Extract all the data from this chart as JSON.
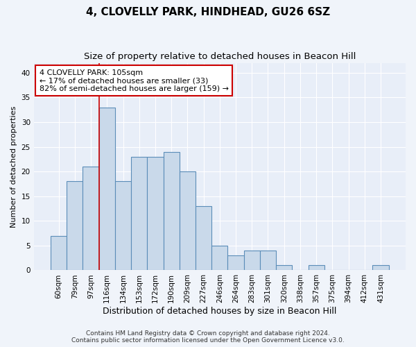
{
  "title": "4, CLOVELLY PARK, HINDHEAD, GU26 6SZ",
  "subtitle": "Size of property relative to detached houses in Beacon Hill",
  "xlabel": "Distribution of detached houses by size in Beacon Hill",
  "ylabel": "Number of detached properties",
  "categories": [
    "60sqm",
    "79sqm",
    "97sqm",
    "116sqm",
    "134sqm",
    "153sqm",
    "172sqm",
    "190sqm",
    "209sqm",
    "227sqm",
    "246sqm",
    "264sqm",
    "283sqm",
    "301sqm",
    "320sqm",
    "338sqm",
    "357sqm",
    "375sqm",
    "394sqm",
    "412sqm",
    "431sqm"
  ],
  "values": [
    7,
    18,
    21,
    33,
    18,
    23,
    23,
    24,
    20,
    13,
    5,
    3,
    4,
    4,
    1,
    0,
    1,
    0,
    0,
    0,
    1
  ],
  "bar_color": "#c9d9ea",
  "bar_edge_color": "#5b8db8",
  "bar_edge_width": 0.8,
  "property_line_x": 2.5,
  "annotation_text": "4 CLOVELLY PARK: 105sqm\n← 17% of detached houses are smaller (33)\n82% of semi-detached houses are larger (159) →",
  "annotation_box_color": "#ffffff",
  "annotation_box_edge_color": "#cc0000",
  "ylim": [
    0,
    42
  ],
  "yticks": [
    0,
    5,
    10,
    15,
    20,
    25,
    30,
    35,
    40
  ],
  "footer1": "Contains HM Land Registry data © Crown copyright and database right 2024.",
  "footer2": "Contains public sector information licensed under the Open Government Licence v3.0.",
  "fig_background_color": "#f0f4fa",
  "ax_background_color": "#e8eef8",
  "grid_color": "#ffffff",
  "title_fontsize": 11,
  "subtitle_fontsize": 9.5,
  "xlabel_fontsize": 9,
  "ylabel_fontsize": 8,
  "tick_fontsize": 7.5,
  "annotation_fontsize": 8,
  "footer_fontsize": 6.5,
  "red_line_color": "#cc0000"
}
